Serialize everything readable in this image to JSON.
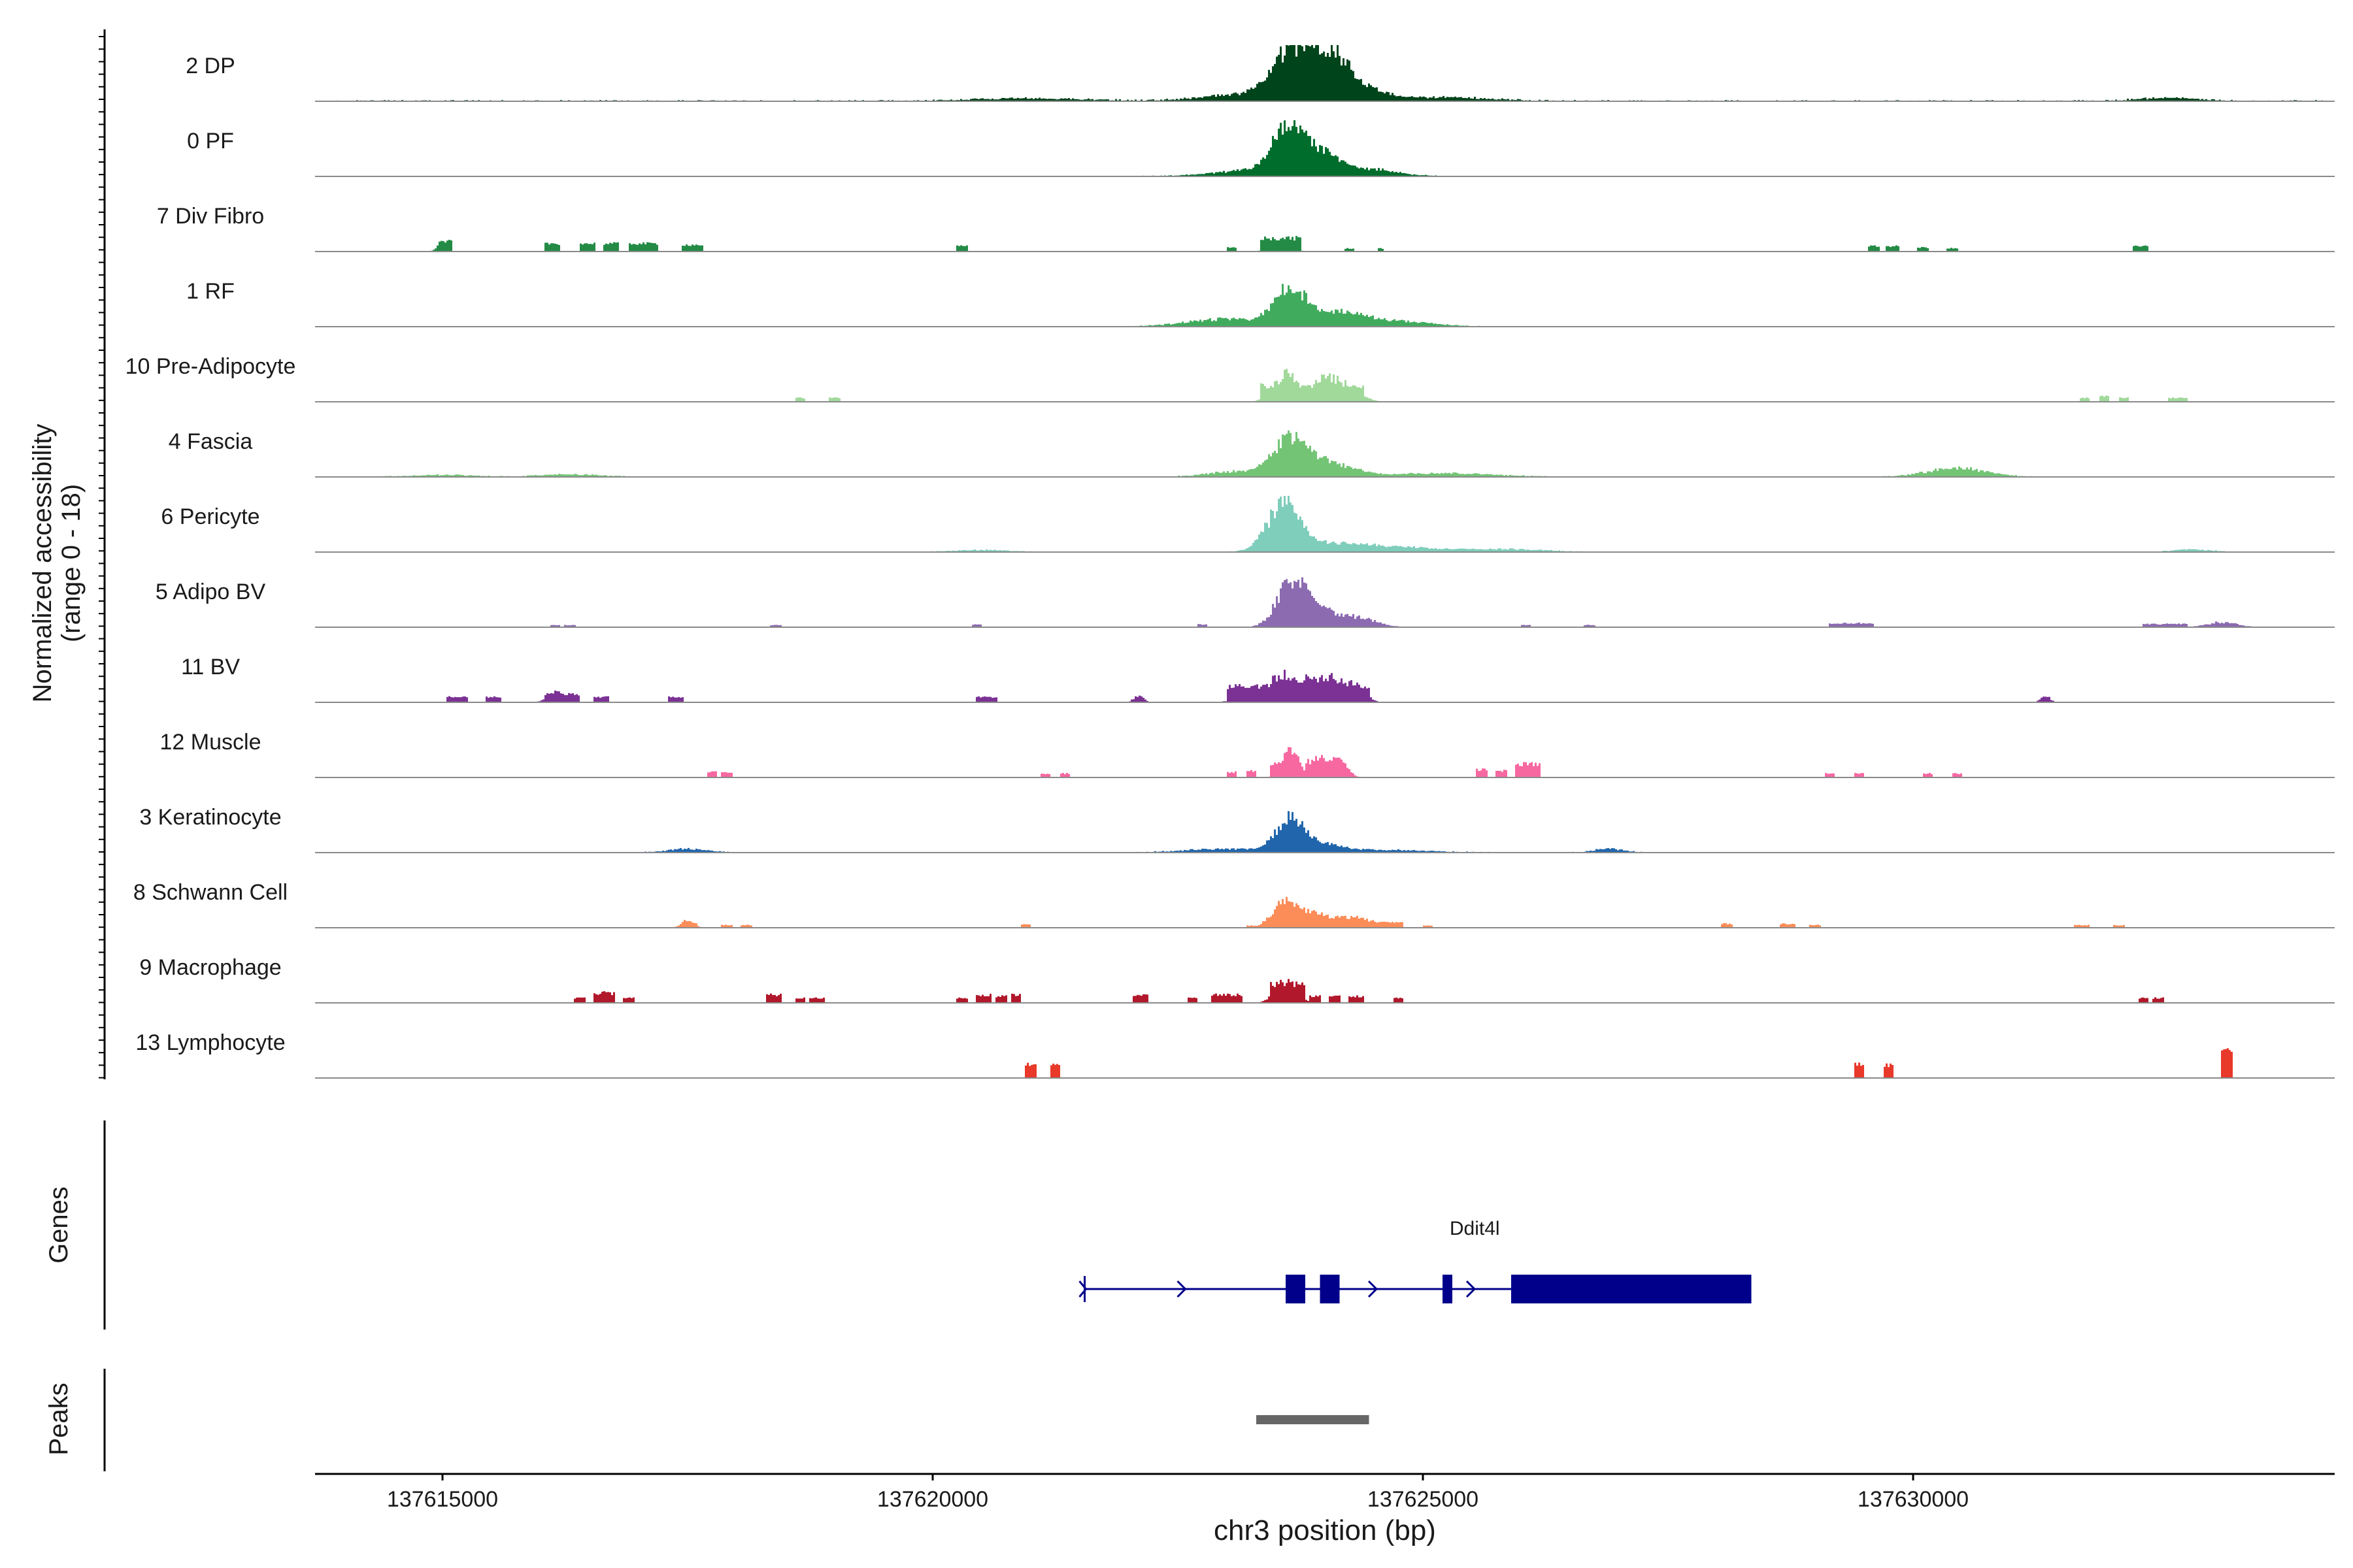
{
  "chart_data": {
    "type": "area",
    "title": "",
    "ylabel_line1": "Normalized accessibility",
    "ylabel_line2": "(range 0 - 18)",
    "xlabel": "chr3 position (bp)",
    "xlim": [
      137613700,
      137634300
    ],
    "xticks": [
      137615000,
      137620000,
      137625000,
      137630000
    ],
    "xtick_labels": [
      "137615000",
      "137620000",
      "137625000",
      "137630000"
    ],
    "ylim": [
      0,
      18
    ],
    "genes_label": "Genes",
    "peaks_label": "Peaks",
    "tracks": [
      {
        "name": "2 DP",
        "color": "#00441b",
        "noise": 0.8,
        "peaks": [
          [
            137623650,
            18,
            180
          ],
          [
            137624020,
            16,
            180
          ],
          [
            137624300,
            6,
            250
          ],
          [
            137623200,
            3,
            400
          ],
          [
            137625200,
            1.5,
            500
          ],
          [
            137621000,
            1,
            600
          ],
          [
            137632600,
            1.2,
            300
          ]
        ]
      },
      {
        "name": "0 PF",
        "color": "#006d2c",
        "noise": 0.4,
        "peaks": [
          [
            137623620,
            18,
            150
          ],
          [
            137623950,
            8,
            180
          ],
          [
            137624400,
            3,
            300
          ],
          [
            137623300,
            2.5,
            400
          ]
        ]
      },
      {
        "name": "7 Div Fibro",
        "color": "#238b45",
        "noise": 0,
        "blocks": [
          [
            137614970,
            137615100,
            4
          ],
          [
            137616050,
            137616200,
            3
          ],
          [
            137616400,
            137616550,
            3
          ],
          [
            137616650,
            137616800,
            3
          ],
          [
            137616900,
            137617200,
            3
          ],
          [
            137617450,
            137617650,
            2.5
          ],
          [
            137620250,
            137620350,
            2
          ],
          [
            137623000,
            137623100,
            1.5
          ],
          [
            137623350,
            137623750,
            5
          ],
          [
            137624200,
            137624300,
            1.2
          ],
          [
            137624550,
            137624600,
            1.2
          ],
          [
            137629550,
            137629650,
            2
          ],
          [
            137629720,
            137629850,
            2
          ],
          [
            137630050,
            137630150,
            1.5
          ],
          [
            137630350,
            137630450,
            1.2
          ],
          [
            137632250,
            137632400,
            2
          ]
        ],
        "peaks": [
          [
            137623550,
            4,
            100
          ],
          [
            137614990,
            3,
            50
          ]
        ]
      },
      {
        "name": "1 RF",
        "color": "#41ab5d",
        "noise": 0.3,
        "peaks": [
          [
            137623650,
            15,
            160
          ],
          [
            137624150,
            5,
            250
          ],
          [
            137623000,
            3,
            400
          ],
          [
            137624700,
            2,
            400
          ]
        ]
      },
      {
        "name": "10 Pre-Adipocyte",
        "color": "#a1d99b",
        "noise": 0,
        "blocks": [
          [
            137623350,
            137624400,
            6
          ],
          [
            137618600,
            137618700,
            1.5
          ],
          [
            137618950,
            137619050,
            1.5
          ],
          [
            137631700,
            137631800,
            1.5
          ],
          [
            137631900,
            137632000,
            2
          ],
          [
            137632100,
            137632200,
            1.5
          ],
          [
            137632600,
            137632800,
            1.5
          ]
        ],
        "peaks": [
          [
            137623600,
            11,
            120
          ],
          [
            137624000,
            9,
            120
          ],
          [
            137624250,
            6,
            120
          ]
        ]
      },
      {
        "name": "4 Fascia",
        "color": "#74c476",
        "noise": 0.4,
        "peaks": [
          [
            137623650,
            14,
            180
          ],
          [
            137624050,
            5,
            250
          ],
          [
            137623100,
            2,
            300
          ],
          [
            137625200,
            1.5,
            500
          ],
          [
            137630450,
            3.5,
            300
          ],
          [
            137616300,
            1,
            300
          ],
          [
            137615000,
            0.8,
            300
          ]
        ]
      },
      {
        "name": "6 Pericyte",
        "color": "#7fcdbb",
        "noise": 0.25,
        "peaks": [
          [
            137623580,
            18,
            160
          ],
          [
            137624050,
            3,
            400
          ],
          [
            137624800,
            1.5,
            500
          ],
          [
            137625900,
            1,
            400
          ],
          [
            137620500,
            0.8,
            300
          ],
          [
            137632850,
            1,
            200
          ]
        ]
      },
      {
        "name": "5 Adipo BV",
        "color": "#8c6bb1",
        "noise": 0.1,
        "blocks": [
          [
            137616100,
            137616200,
            0.8
          ],
          [
            137616250,
            137616350,
            0.8
          ],
          [
            137618350,
            137618450,
            0.8
          ],
          [
            137620400,
            137620500,
            1
          ],
          [
            137622700,
            137622800,
            1
          ],
          [
            137626000,
            137626100,
            0.8
          ],
          [
            137626650,
            137626750,
            0.8
          ],
          [
            137629150,
            137629600,
            1.5
          ],
          [
            137632350,
            137632800,
            1.2
          ]
        ],
        "peaks": [
          [
            137623650,
            17,
            140
          ],
          [
            137623900,
            8,
            150
          ],
          [
            137624300,
            4,
            200
          ],
          [
            137633150,
            2,
            150
          ]
        ]
      },
      {
        "name": "11 BV",
        "color": "#7b3294",
        "noise": 0,
        "blocks": [
          [
            137615050,
            137615250,
            2
          ],
          [
            137615450,
            137615600,
            2
          ],
          [
            137616050,
            137616400,
            3
          ],
          [
            137616550,
            137616700,
            2
          ],
          [
            137617300,
            137617450,
            2
          ],
          [
            137620450,
            137620650,
            2
          ],
          [
            137623000,
            137624450,
            6
          ],
          [
            137631300,
            137631400,
            2
          ]
        ],
        "peaks": [
          [
            137616150,
            4,
            80
          ],
          [
            137623550,
            11,
            100
          ],
          [
            137623800,
            9,
            100
          ],
          [
            137624050,
            10,
            100
          ],
          [
            137624300,
            7,
            100
          ],
          [
            137623250,
            6,
            120
          ],
          [
            137622100,
            2.5,
            50
          ],
          [
            137631350,
            2,
            50
          ]
        ]
      },
      {
        "name": "12 Muscle",
        "color": "#f768a1",
        "noise": 0,
        "blocks": [
          [
            137617700,
            137617800,
            2
          ],
          [
            137617850,
            137617950,
            2
          ],
          [
            137621100,
            137621200,
            1.5
          ],
          [
            137621300,
            137621400,
            1.5
          ],
          [
            137623000,
            137623100,
            2
          ],
          [
            137623200,
            137623300,
            2.5
          ],
          [
            137623450,
            137623750,
            5
          ],
          [
            137623800,
            137624050,
            6
          ],
          [
            137624100,
            137624200,
            5
          ],
          [
            137625550,
            137625650,
            3
          ],
          [
            137625750,
            137625850,
            2.5
          ],
          [
            137625950,
            137626200,
            5
          ],
          [
            137629100,
            137629200,
            1.5
          ],
          [
            137629400,
            137629500,
            1.5
          ],
          [
            137630100,
            137630200,
            1.5
          ],
          [
            137630400,
            137630500,
            1.5
          ]
        ],
        "peaks": [
          [
            137623650,
            11,
            80
          ],
          [
            137623950,
            8,
            80
          ],
          [
            137624150,
            7,
            80
          ]
        ]
      },
      {
        "name": "3 Keratinocyte",
        "color": "#2166ac",
        "noise": 0.4,
        "peaks": [
          [
            137623650,
            13,
            140
          ],
          [
            137624000,
            3,
            200
          ],
          [
            137617500,
            1.5,
            200
          ],
          [
            137626900,
            1.5,
            150
          ],
          [
            137623000,
            1.5,
            400
          ],
          [
            137624700,
            1,
            400
          ]
        ]
      },
      {
        "name": "8 Schwann Cell",
        "color": "#fc8d59",
        "noise": 0,
        "blocks": [
          [
            137623450,
            137624400,
            4
          ],
          [
            137617500,
            137617600,
            2
          ],
          [
            137617850,
            137617950,
            1
          ],
          [
            137618050,
            137618150,
            1
          ],
          [
            137620900,
            137621000,
            1.2
          ],
          [
            137623200,
            137623300,
            0.8
          ],
          [
            137624450,
            137624800,
            2
          ],
          [
            137625000,
            137625100,
            0.8
          ],
          [
            137628050,
            137628150,
            1.5
          ],
          [
            137628650,
            137628800,
            1.5
          ],
          [
            137628950,
            137629050,
            1
          ],
          [
            137631650,
            137631800,
            1
          ],
          [
            137632050,
            137632150,
            1
          ]
        ],
        "peaks": [
          [
            137623600,
            10,
            130
          ],
          [
            137623950,
            6,
            150
          ],
          [
            137617500,
            3,
            60
          ],
          [
            137624450,
            3,
            80
          ]
        ]
      },
      {
        "name": "9 Macrophage",
        "color": "#b2182b",
        "noise": 0,
        "blocks": [
          [
            137616350,
            137616450,
            1.8
          ],
          [
            137616550,
            137616750,
            3.5
          ],
          [
            137616850,
            137616950,
            1.8
          ],
          [
            137618300,
            137618450,
            3
          ],
          [
            137618600,
            137618700,
            1.8
          ],
          [
            137618750,
            137618900,
            1.8
          ],
          [
            137620250,
            137620350,
            1.8
          ],
          [
            137620450,
            137620600,
            3
          ],
          [
            137620650,
            137620750,
            2.5
          ],
          [
            137620800,
            137620900,
            3
          ],
          [
            137622050,
            137622200,
            3
          ],
          [
            137622600,
            137622700,
            1.8
          ],
          [
            137622850,
            137623150,
            3
          ],
          [
            137623450,
            137623800,
            7
          ],
          [
            137623850,
            137623950,
            2.5
          ],
          [
            137624050,
            137624150,
            2.5
          ],
          [
            137624250,
            137624400,
            2.5
          ],
          [
            137624700,
            137624800,
            1.8
          ],
          [
            137632300,
            137632400,
            1.8
          ],
          [
            137632450,
            137632550,
            1.8
          ]
        ],
        "peaks": [
          [
            137623600,
            9,
            100
          ],
          [
            137616650,
            4,
            50
          ]
        ]
      },
      {
        "name": "13 Lymphocyte",
        "color": "#e8392a",
        "noise": 0,
        "blocks": [
          [
            137620950,
            137621050,
            5
          ],
          [
            137621200,
            137621300,
            5
          ],
          [
            137629400,
            137629500,
            5
          ],
          [
            137629700,
            137629800,
            5
          ],
          [
            137633150,
            137633250,
            10
          ]
        ],
        "peaks": []
      }
    ],
    "gene": {
      "name": "Ddit4l",
      "start": 137621550,
      "end": 137628350,
      "strand": "+",
      "exons": [
        [
          137623600,
          137623800
        ],
        [
          137623950,
          137624150
        ],
        [
          137625200,
          137625300
        ],
        [
          137625900,
          137628350
        ]
      ],
      "arrows": [
        137622550,
        137624500,
        137625500
      ],
      "color": "#00008b"
    },
    "peaks_track": [
      {
        "start": 137623300,
        "end": 137624450,
        "color": "#666666"
      }
    ]
  }
}
